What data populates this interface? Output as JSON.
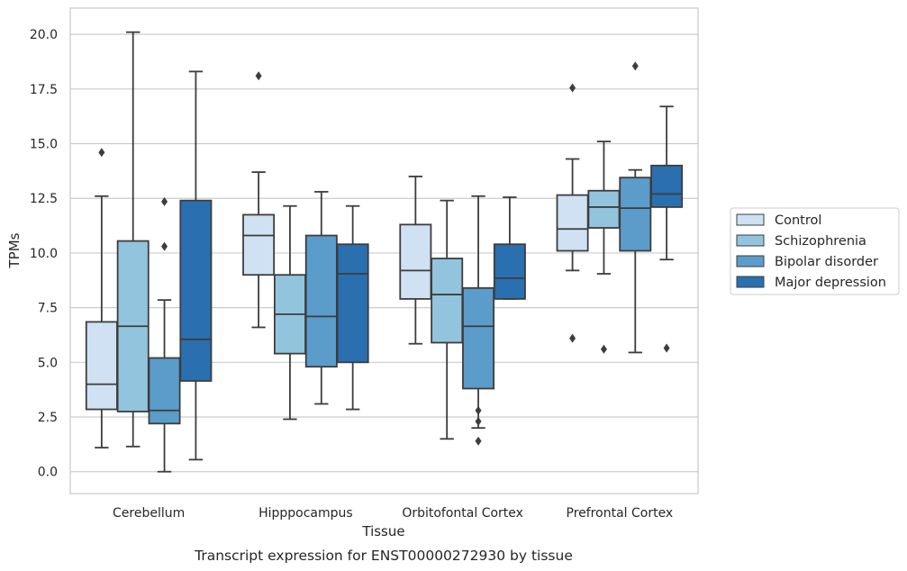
{
  "chart_data": {
    "type": "box",
    "title": "",
    "xlabel": "Tissue",
    "ylabel": "TPMs",
    "caption": "Transcript expression for ENST00000272930 by tissue",
    "ylim": [
      -1.0,
      21.2
    ],
    "yticks": [
      "0.0",
      "2.5",
      "5.0",
      "7.5",
      "10.0",
      "12.5",
      "15.0",
      "17.5",
      "20.0"
    ],
    "grid": "horizontal",
    "legend_position": "right",
    "categories": [
      "Cerebellum",
      "Hipppocampus",
      "Orbitofontal Cortex",
      "Prefrontal Cortex"
    ],
    "series": [
      {
        "name": "Control",
        "color": "#cfe1f2",
        "boxes": [
          {
            "whislo": 1.1,
            "q1": 2.85,
            "med": 4.0,
            "q3": 6.85,
            "whishi": 12.6,
            "fliers": [
              14.6
            ]
          },
          {
            "whislo": 6.6,
            "q1": 9.0,
            "med": 10.8,
            "q3": 11.75,
            "whishi": 13.7,
            "fliers": [
              18.1
            ]
          },
          {
            "whislo": 5.85,
            "q1": 7.9,
            "med": 9.2,
            "q3": 11.3,
            "whishi": 13.5,
            "fliers": []
          },
          {
            "whislo": 9.2,
            "q1": 10.1,
            "med": 11.1,
            "q3": 12.65,
            "whishi": 14.3,
            "fliers": [
              17.55,
              6.1
            ]
          }
        ]
      },
      {
        "name": "Schizophrenia",
        "color": "#93c4de",
        "boxes": [
          {
            "whislo": 1.15,
            "q1": 2.75,
            "med": 6.65,
            "q3": 10.55,
            "whishi": 20.1,
            "fliers": []
          },
          {
            "whislo": 2.4,
            "q1": 5.4,
            "med": 7.2,
            "q3": 9.0,
            "whishi": 12.15,
            "fliers": []
          },
          {
            "whislo": 1.5,
            "q1": 5.9,
            "med": 8.1,
            "q3": 9.75,
            "whishi": 12.4,
            "fliers": []
          },
          {
            "whislo": 9.05,
            "q1": 11.15,
            "med": 12.1,
            "q3": 12.85,
            "whishi": 15.1,
            "fliers": [
              5.6
            ]
          }
        ]
      },
      {
        "name": "Bipolar disorder",
        "color": "#5b9cca",
        "boxes": [
          {
            "whislo": 0.0,
            "q1": 2.2,
            "med": 2.8,
            "q3": 5.2,
            "whishi": 7.85,
            "fliers": [
              12.35,
              10.3
            ]
          },
          {
            "whislo": 3.1,
            "q1": 4.8,
            "med": 7.1,
            "q3": 10.8,
            "whishi": 12.8,
            "fliers": []
          },
          {
            "whislo": 2.0,
            "q1": 3.8,
            "med": 6.65,
            "q3": 8.4,
            "whishi": 12.6,
            "fliers": [
              2.8,
              2.3,
              1.4
            ]
          },
          {
            "whislo": 5.45,
            "q1": 10.1,
            "med": 12.05,
            "q3": 13.45,
            "whishi": 13.8,
            "fliers": [
              18.55
            ]
          }
        ]
      },
      {
        "name": "Major depression",
        "color": "#2a6fb0",
        "boxes": [
          {
            "whislo": 0.55,
            "q1": 4.15,
            "med": 6.05,
            "q3": 12.4,
            "whishi": 18.3,
            "fliers": []
          },
          {
            "whislo": 2.85,
            "q1": 5.0,
            "med": 9.05,
            "q3": 10.4,
            "whishi": 12.15,
            "fliers": []
          },
          {
            "whislo": 7.9,
            "q1": 7.9,
            "med": 8.85,
            "q3": 10.4,
            "whishi": 12.55,
            "fliers": []
          },
          {
            "whislo": 9.7,
            "q1": 12.1,
            "med": 12.7,
            "q3": 14.0,
            "whishi": 16.7,
            "fliers": [
              5.65
            ]
          }
        ]
      }
    ]
  }
}
